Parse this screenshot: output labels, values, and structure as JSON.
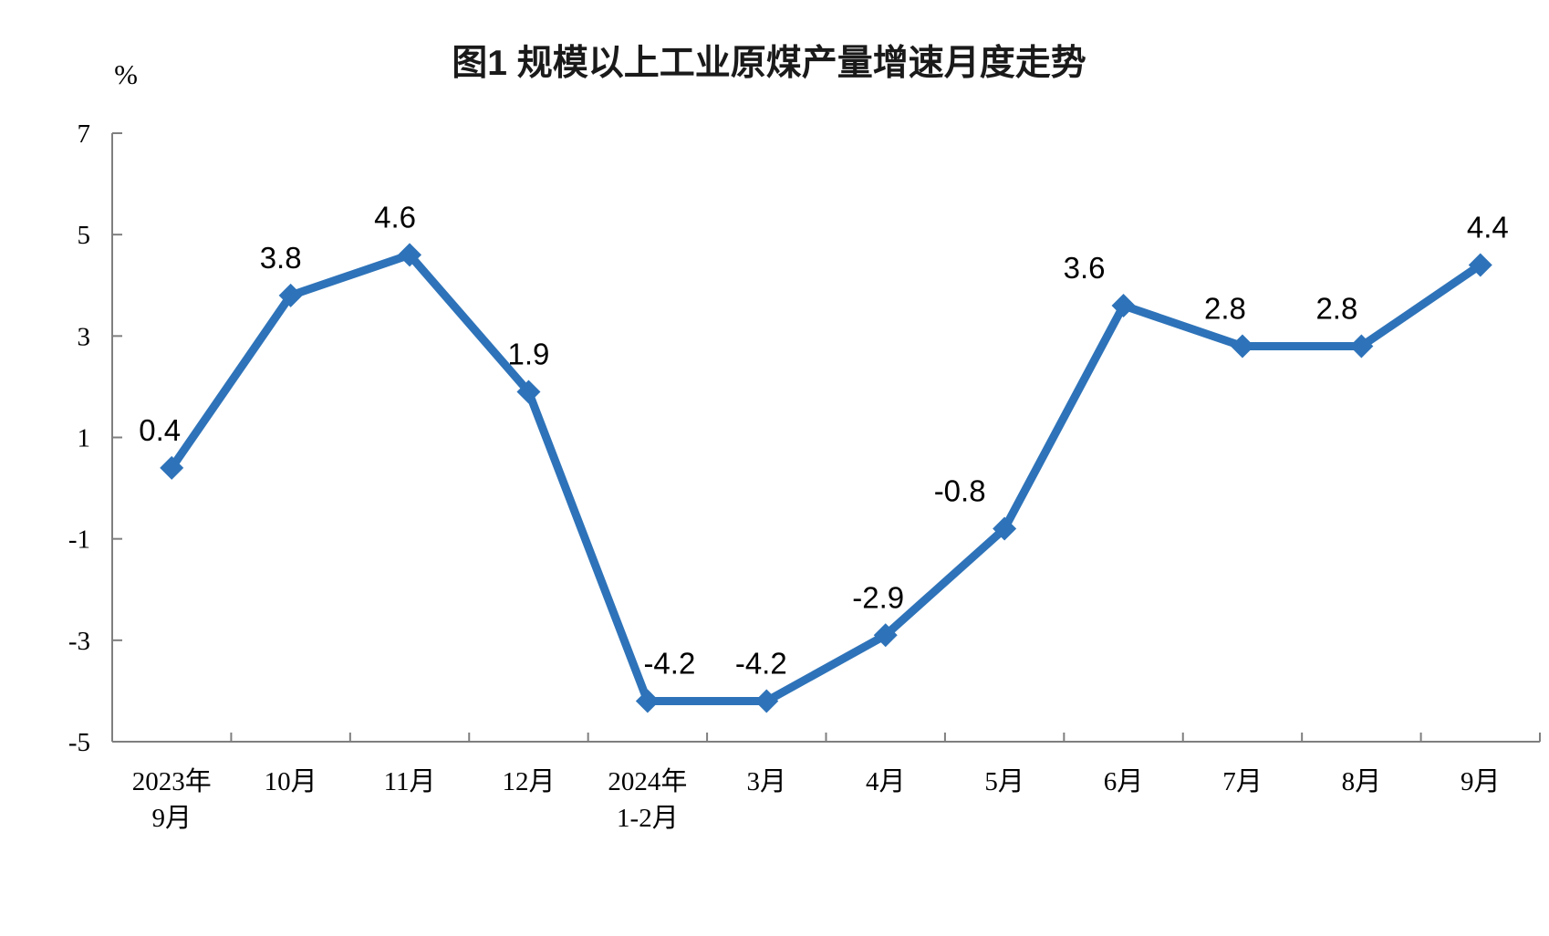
{
  "chart_data": {
    "type": "line",
    "title": "图1 规模以上工业原煤产量增速月度走势",
    "unit_label": "%",
    "categories": [
      [
        "2023年",
        "9月"
      ],
      [
        "10月"
      ],
      [
        "11月"
      ],
      [
        "12月"
      ],
      [
        "2024年",
        "1-2月"
      ],
      [
        "3月"
      ],
      [
        "4月"
      ],
      [
        "5月"
      ],
      [
        "6月"
      ],
      [
        "7月"
      ],
      [
        "8月"
      ],
      [
        "9月"
      ]
    ],
    "values": [
      0.4,
      3.8,
      4.6,
      1.9,
      -4.2,
      -4.2,
      -2.9,
      -0.8,
      3.6,
      2.8,
      2.8,
      4.4
    ],
    "data_labels": [
      "0.4",
      "3.8",
      "4.6",
      "1.9",
      "-4.2",
      "-4.2",
      "-2.9",
      "-0.8",
      "3.6",
      "2.8",
      "2.8",
      "4.4"
    ],
    "yticks": [
      7,
      5,
      3,
      1,
      -1,
      -3,
      -5
    ],
    "ylim": [
      -5,
      7
    ],
    "line_color": "#2E73B9",
    "marker": "diamond",
    "marker_color": "#2E73B9",
    "axis_color": "#7f7f7f",
    "grid": false,
    "legend_position": "none",
    "label_dx": [
      -13,
      -11,
      -16,
      0,
      24,
      -6,
      -8,
      -49,
      -43,
      -19,
      -27,
      8
    ]
  }
}
